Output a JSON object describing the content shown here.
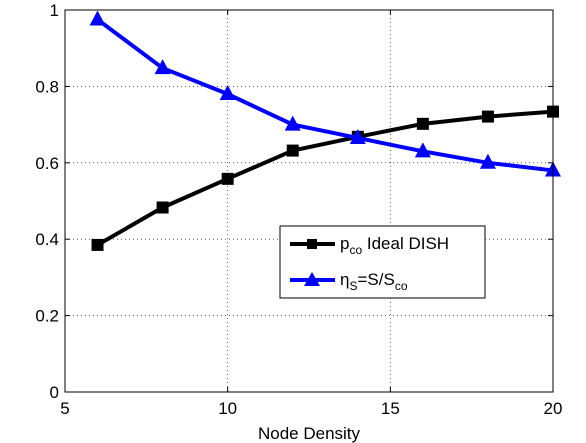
{
  "chart_data": {
    "type": "line",
    "xlabel": "Node Density",
    "ylabel": "",
    "xlim": [
      5,
      20
    ],
    "ylim": [
      0,
      1
    ],
    "x_ticks": [
      "5",
      "10",
      "15",
      "20"
    ],
    "y_ticks": [
      "0",
      "0.2",
      "0.4",
      "0.6",
      "0.8",
      "1"
    ],
    "grid": true,
    "legend_position": "center-right",
    "x": [
      6,
      8,
      10,
      12,
      14,
      16,
      18,
      20
    ],
    "series": [
      {
        "name_main": "p",
        "name_sub": "co",
        "name_rest": " Ideal DISH",
        "color": "#000000",
        "marker": "square",
        "values": [
          0.385,
          0.483,
          0.558,
          0.632,
          0.668,
          0.702,
          0.721,
          0.734
        ]
      },
      {
        "name_main": "η",
        "name_sub": "S",
        "name_rest": "=S/S",
        "name_sub2": "co",
        "color": "#0000ff",
        "marker": "triangle",
        "values": [
          0.975,
          0.848,
          0.78,
          0.7,
          0.665,
          0.63,
          0.6,
          0.58
        ]
      }
    ]
  }
}
